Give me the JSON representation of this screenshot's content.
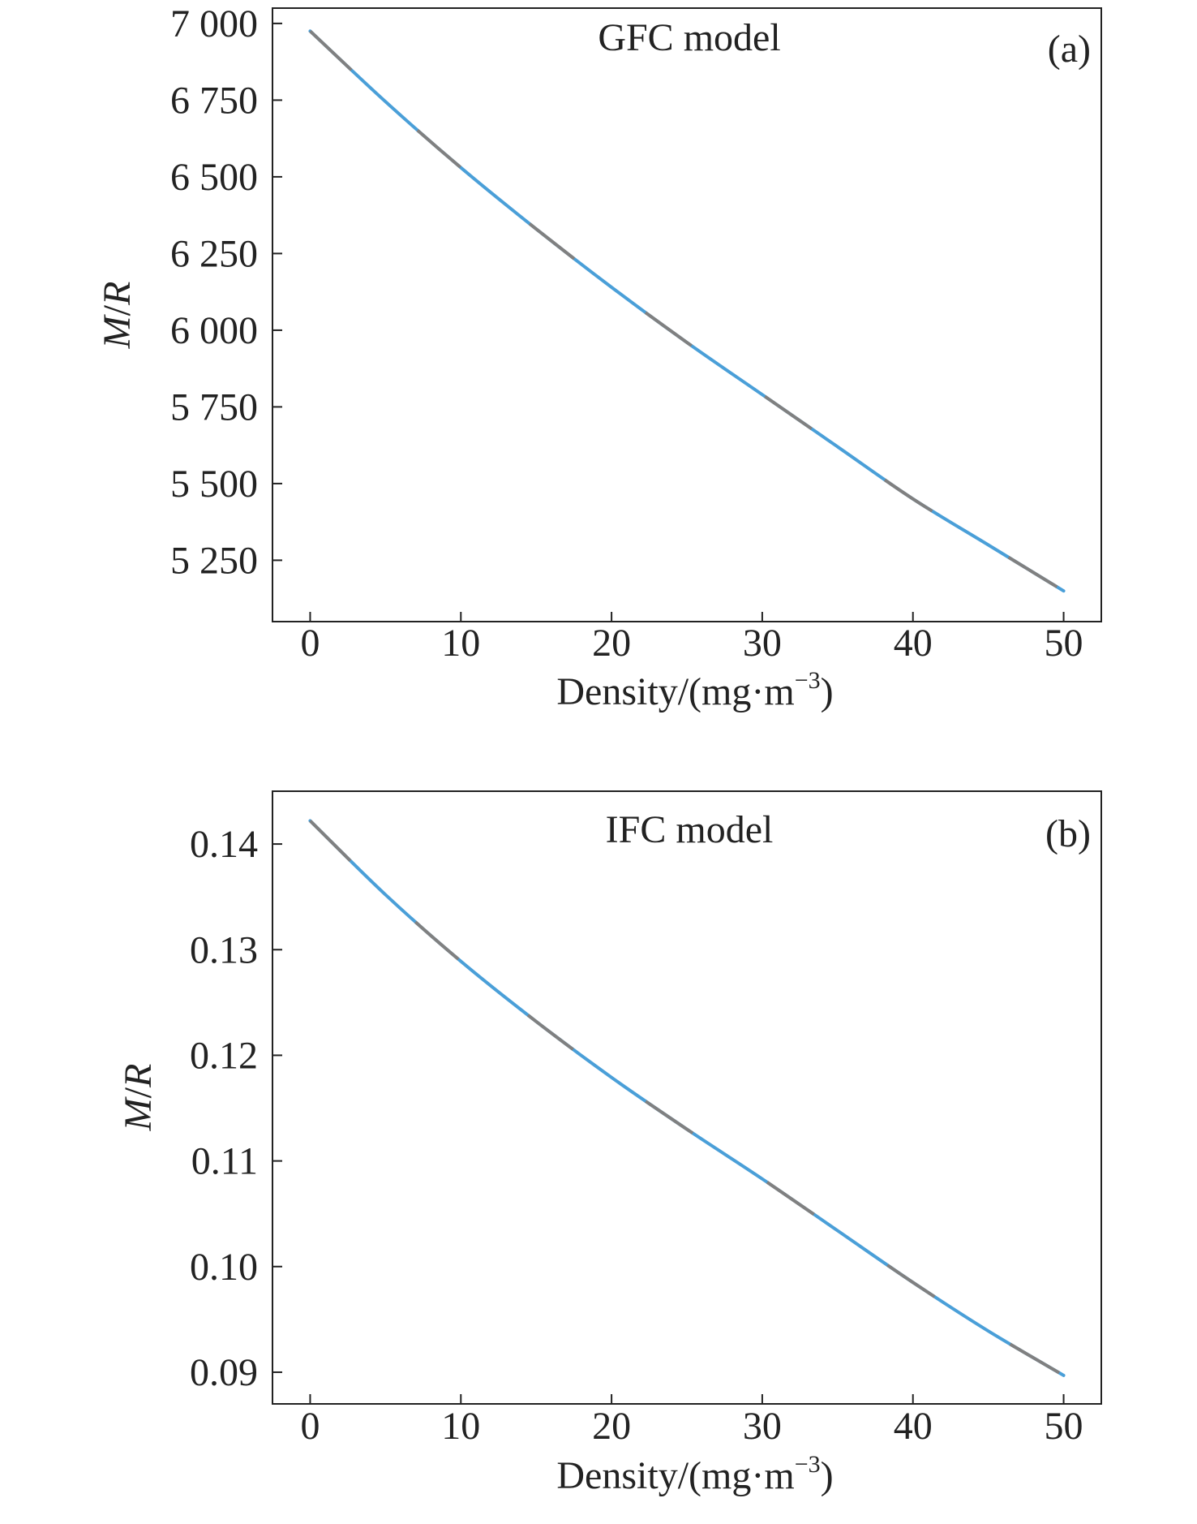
{
  "chart_data": [
    {
      "type": "line",
      "panel_label": "(a)",
      "annotation": "GFC model",
      "xlabel": "Density/(mg·m",
      "xlabel_sup": "−3",
      "xlabel_tail": ")",
      "ylabel_italic_m": "M",
      "ylabel_slash": "/",
      "ylabel_italic_r": "R",
      "xlim": [
        -2.5,
        52.5
      ],
      "ylim": [
        5050,
        7050
      ],
      "xticks": [
        0,
        10,
        20,
        30,
        40,
        50
      ],
      "xtick_labels": [
        "0",
        "10",
        "20",
        "30",
        "40",
        "50"
      ],
      "yticks": [
        5250,
        5500,
        5750,
        6000,
        6250,
        6500,
        6750,
        7000
      ],
      "ytick_labels": [
        "5 250",
        "5 500",
        "5 750",
        "6 000",
        "6 250",
        "6 500",
        "6 750",
        "7 000"
      ],
      "line_colors": [
        "#4a9fd8",
        "#808080"
      ],
      "x": [
        0,
        5,
        10,
        15,
        20,
        25,
        30,
        35,
        40,
        45,
        50
      ],
      "y": [
        6975,
        6745,
        6530,
        6330,
        6140,
        5960,
        5790,
        5620,
        5450,
        5300,
        5150
      ]
    },
    {
      "type": "line",
      "panel_label": "(b)",
      "annotation": "IFC model",
      "xlabel": "Density/(mg·m",
      "xlabel_sup": "−3",
      "xlabel_tail": ")",
      "ylabel_italic_m": "M",
      "ylabel_slash": "/",
      "ylabel_italic_r": "R",
      "xlim": [
        -2.5,
        52.5
      ],
      "ylim": [
        0.087,
        0.145
      ],
      "xticks": [
        0,
        10,
        20,
        30,
        40,
        50
      ],
      "xtick_labels": [
        "0",
        "10",
        "20",
        "30",
        "40",
        "50"
      ],
      "yticks": [
        0.09,
        0.1,
        0.11,
        0.12,
        0.13,
        0.14
      ],
      "ytick_labels": [
        "0.09",
        "0.10",
        "0.11",
        "0.12",
        "0.13",
        "0.14"
      ],
      "line_colors": [
        "#4a9fd8",
        "#808080"
      ],
      "x": [
        0,
        5,
        10,
        15,
        20,
        25,
        30,
        35,
        40,
        45,
        50
      ],
      "y": [
        0.1422,
        0.1352,
        0.1289,
        0.1232,
        0.1179,
        0.113,
        0.1083,
        0.1034,
        0.0985,
        0.0939,
        0.0897
      ]
    }
  ]
}
